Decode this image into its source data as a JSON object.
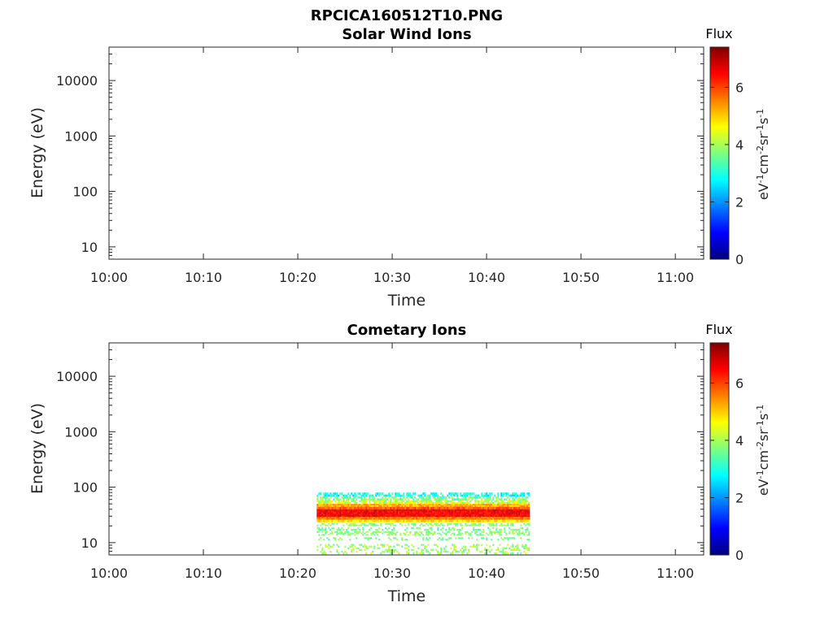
{
  "figure_title": "RPCICA160512T10.PNG",
  "colors": {
    "axis": "#262626",
    "colormap": [
      "#00007f",
      "#0000ff",
      "#007fff",
      "#00ffff",
      "#7fff7f",
      "#ffff00",
      "#ff7f00",
      "#ff0000",
      "#7f0000"
    ]
  },
  "chart_data": [
    {
      "type": "heatmap",
      "title": "Solar Wind Ions",
      "xlabel": "Time",
      "ylabel": "Energy (eV)",
      "xlim": [
        "10:00",
        "11:03"
      ],
      "x_ticks": [
        "10:00",
        "10:10",
        "10:20",
        "10:30",
        "10:40",
        "10:50",
        "11:00"
      ],
      "ylim": [
        6,
        40000
      ],
      "y_scale": "log",
      "y_ticks": [
        {
          "value": 10,
          "label": "10"
        },
        {
          "value": 100,
          "label": "100"
        },
        {
          "value": 1000,
          "label": "1000"
        },
        {
          "value": 10000,
          "label": "10000"
        }
      ],
      "colorbar": {
        "title": "Flux",
        "label": "eV-1cm-2sr-1s-1",
        "range": [
          0,
          7.4
        ],
        "ticks": [
          0,
          2,
          4,
          6
        ]
      },
      "data_bands": []
    },
    {
      "type": "heatmap",
      "title": "Cometary Ions",
      "xlabel": "Time",
      "ylabel": "Energy (eV)",
      "xlim": [
        "10:00",
        "11:03"
      ],
      "x_ticks": [
        "10:00",
        "10:10",
        "10:20",
        "10:30",
        "10:40",
        "10:50",
        "11:00"
      ],
      "ylim": [
        6,
        40000
      ],
      "y_scale": "log",
      "y_ticks": [
        {
          "value": 10,
          "label": "10"
        },
        {
          "value": 100,
          "label": "100"
        },
        {
          "value": 1000,
          "label": "1000"
        },
        {
          "value": 10000,
          "label": "10000"
        }
      ],
      "colorbar": {
        "title": "Flux",
        "label": "eV-1cm-2sr-1s-1",
        "range": [
          0,
          7.4
        ],
        "ticks": [
          0,
          2,
          4,
          6
        ]
      },
      "data_bands": [
        {
          "t_start": "10:22",
          "t_end": "10:44.5",
          "e_low": 68,
          "e_high": 80,
          "flux_min": 2.4,
          "flux_max": 3.4,
          "density": 0.55
        },
        {
          "t_start": "10:22",
          "t_end": "10:44.5",
          "e_low": 58,
          "e_high": 68,
          "flux_min": 3.0,
          "flux_max": 4.2,
          "density": 0.65
        },
        {
          "t_start": "10:22",
          "t_end": "10:44.5",
          "e_low": 50,
          "e_high": 58,
          "flux_min": 3.6,
          "flux_max": 4.8,
          "density": 0.85
        },
        {
          "t_start": "10:22",
          "t_end": "10:44.5",
          "e_low": 44,
          "e_high": 50,
          "flux_min": 4.8,
          "flux_max": 5.6,
          "density": 1.0
        },
        {
          "t_start": "10:22",
          "t_end": "10:44.5",
          "e_low": 40,
          "e_high": 44,
          "flux_min": 5.4,
          "flux_max": 6.2,
          "density": 1.0
        },
        {
          "t_start": "10:22",
          "t_end": "10:44.5",
          "e_low": 29,
          "e_high": 40,
          "flux_min": 6.2,
          "flux_max": 7.0,
          "density": 1.0
        },
        {
          "t_start": "10:22",
          "t_end": "10:44.5",
          "e_low": 26,
          "e_high": 29,
          "flux_min": 5.2,
          "flux_max": 6.0,
          "density": 1.0
        },
        {
          "t_start": "10:22",
          "t_end": "10:44.5",
          "e_low": 23.5,
          "e_high": 26,
          "flux_min": 4.4,
          "flux_max": 5.2,
          "density": 1.0
        },
        {
          "t_start": "10:22",
          "t_end": "10:44.5",
          "e_low": 20,
          "e_high": 22.5,
          "flux_min": 3.4,
          "flux_max": 4.2,
          "density": 0.55
        },
        {
          "t_start": "10:22",
          "t_end": "10:44.5",
          "e_low": 16.5,
          "e_high": 19,
          "flux_min": 3.2,
          "flux_max": 4.0,
          "density": 0.35
        },
        {
          "t_start": "10:22",
          "t_end": "10:44.5",
          "e_low": 13.5,
          "e_high": 16,
          "flux_min": 3.4,
          "flux_max": 4.2,
          "density": 0.5
        },
        {
          "t_start": "10:22",
          "t_end": "10:44.5",
          "e_low": 11,
          "e_high": 12.5,
          "flux_min": 3.2,
          "flux_max": 4.0,
          "density": 0.25
        },
        {
          "t_start": "10:22",
          "t_end": "10:44.5",
          "e_low": 6.2,
          "e_high": 9.5,
          "flux_min": 3.4,
          "flux_max": 4.4,
          "density": 0.3
        }
      ]
    }
  ]
}
